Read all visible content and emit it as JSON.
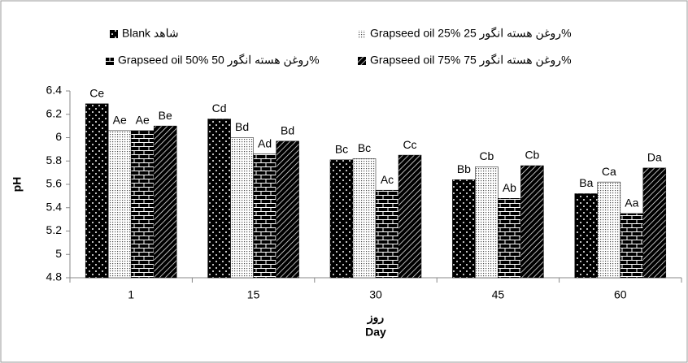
{
  "chart_data": {
    "type": "bar",
    "ylabel": "pH",
    "xlabel": "روز",
    "xlabel_en": "Day",
    "categories": [
      "1",
      "15",
      "30",
      "45",
      "60"
    ],
    "series": [
      {
        "name": "Blank شاهد",
        "color": "#000000",
        "pattern": "dots",
        "values": [
          6.29,
          6.16,
          5.81,
          5.64,
          5.52
        ],
        "value_labels": [
          "Ce",
          "Cd",
          "Bc",
          "Bb",
          "Ba"
        ]
      },
      {
        "name": "Grapseed oil 25% روغن هسته انگور 25%",
        "color": "#000000",
        "pattern": "fine-dots",
        "values": [
          6.06,
          6.0,
          5.82,
          5.75,
          5.62
        ],
        "value_labels": [
          "Ae",
          "Bd",
          "Bc",
          "Cb",
          "Ca"
        ]
      },
      {
        "name": "Grapseed oil 50% روغن هسته انگور 50%",
        "color": "#000000",
        "pattern": "brick",
        "values": [
          6.06,
          5.86,
          5.55,
          5.48,
          5.35
        ],
        "value_labels": [
          "Ae",
          "Ad",
          "Ac",
          "Ab",
          "Aa"
        ]
      },
      {
        "name": "Grapseed oil 75% روغن هسته انگور 75%",
        "color": "#000000",
        "pattern": "hatch",
        "values": [
          6.1,
          5.97,
          5.85,
          5.76,
          5.74
        ],
        "value_labels": [
          "Be",
          "Bd",
          "Cc",
          "Cb",
          "Da"
        ]
      }
    ],
    "ylim": [
      4.8,
      6.4
    ],
    "yticks": [
      4.8,
      5,
      5.2,
      5.4,
      5.6,
      5.8,
      6,
      6.2,
      6.4
    ],
    "grid": false
  }
}
